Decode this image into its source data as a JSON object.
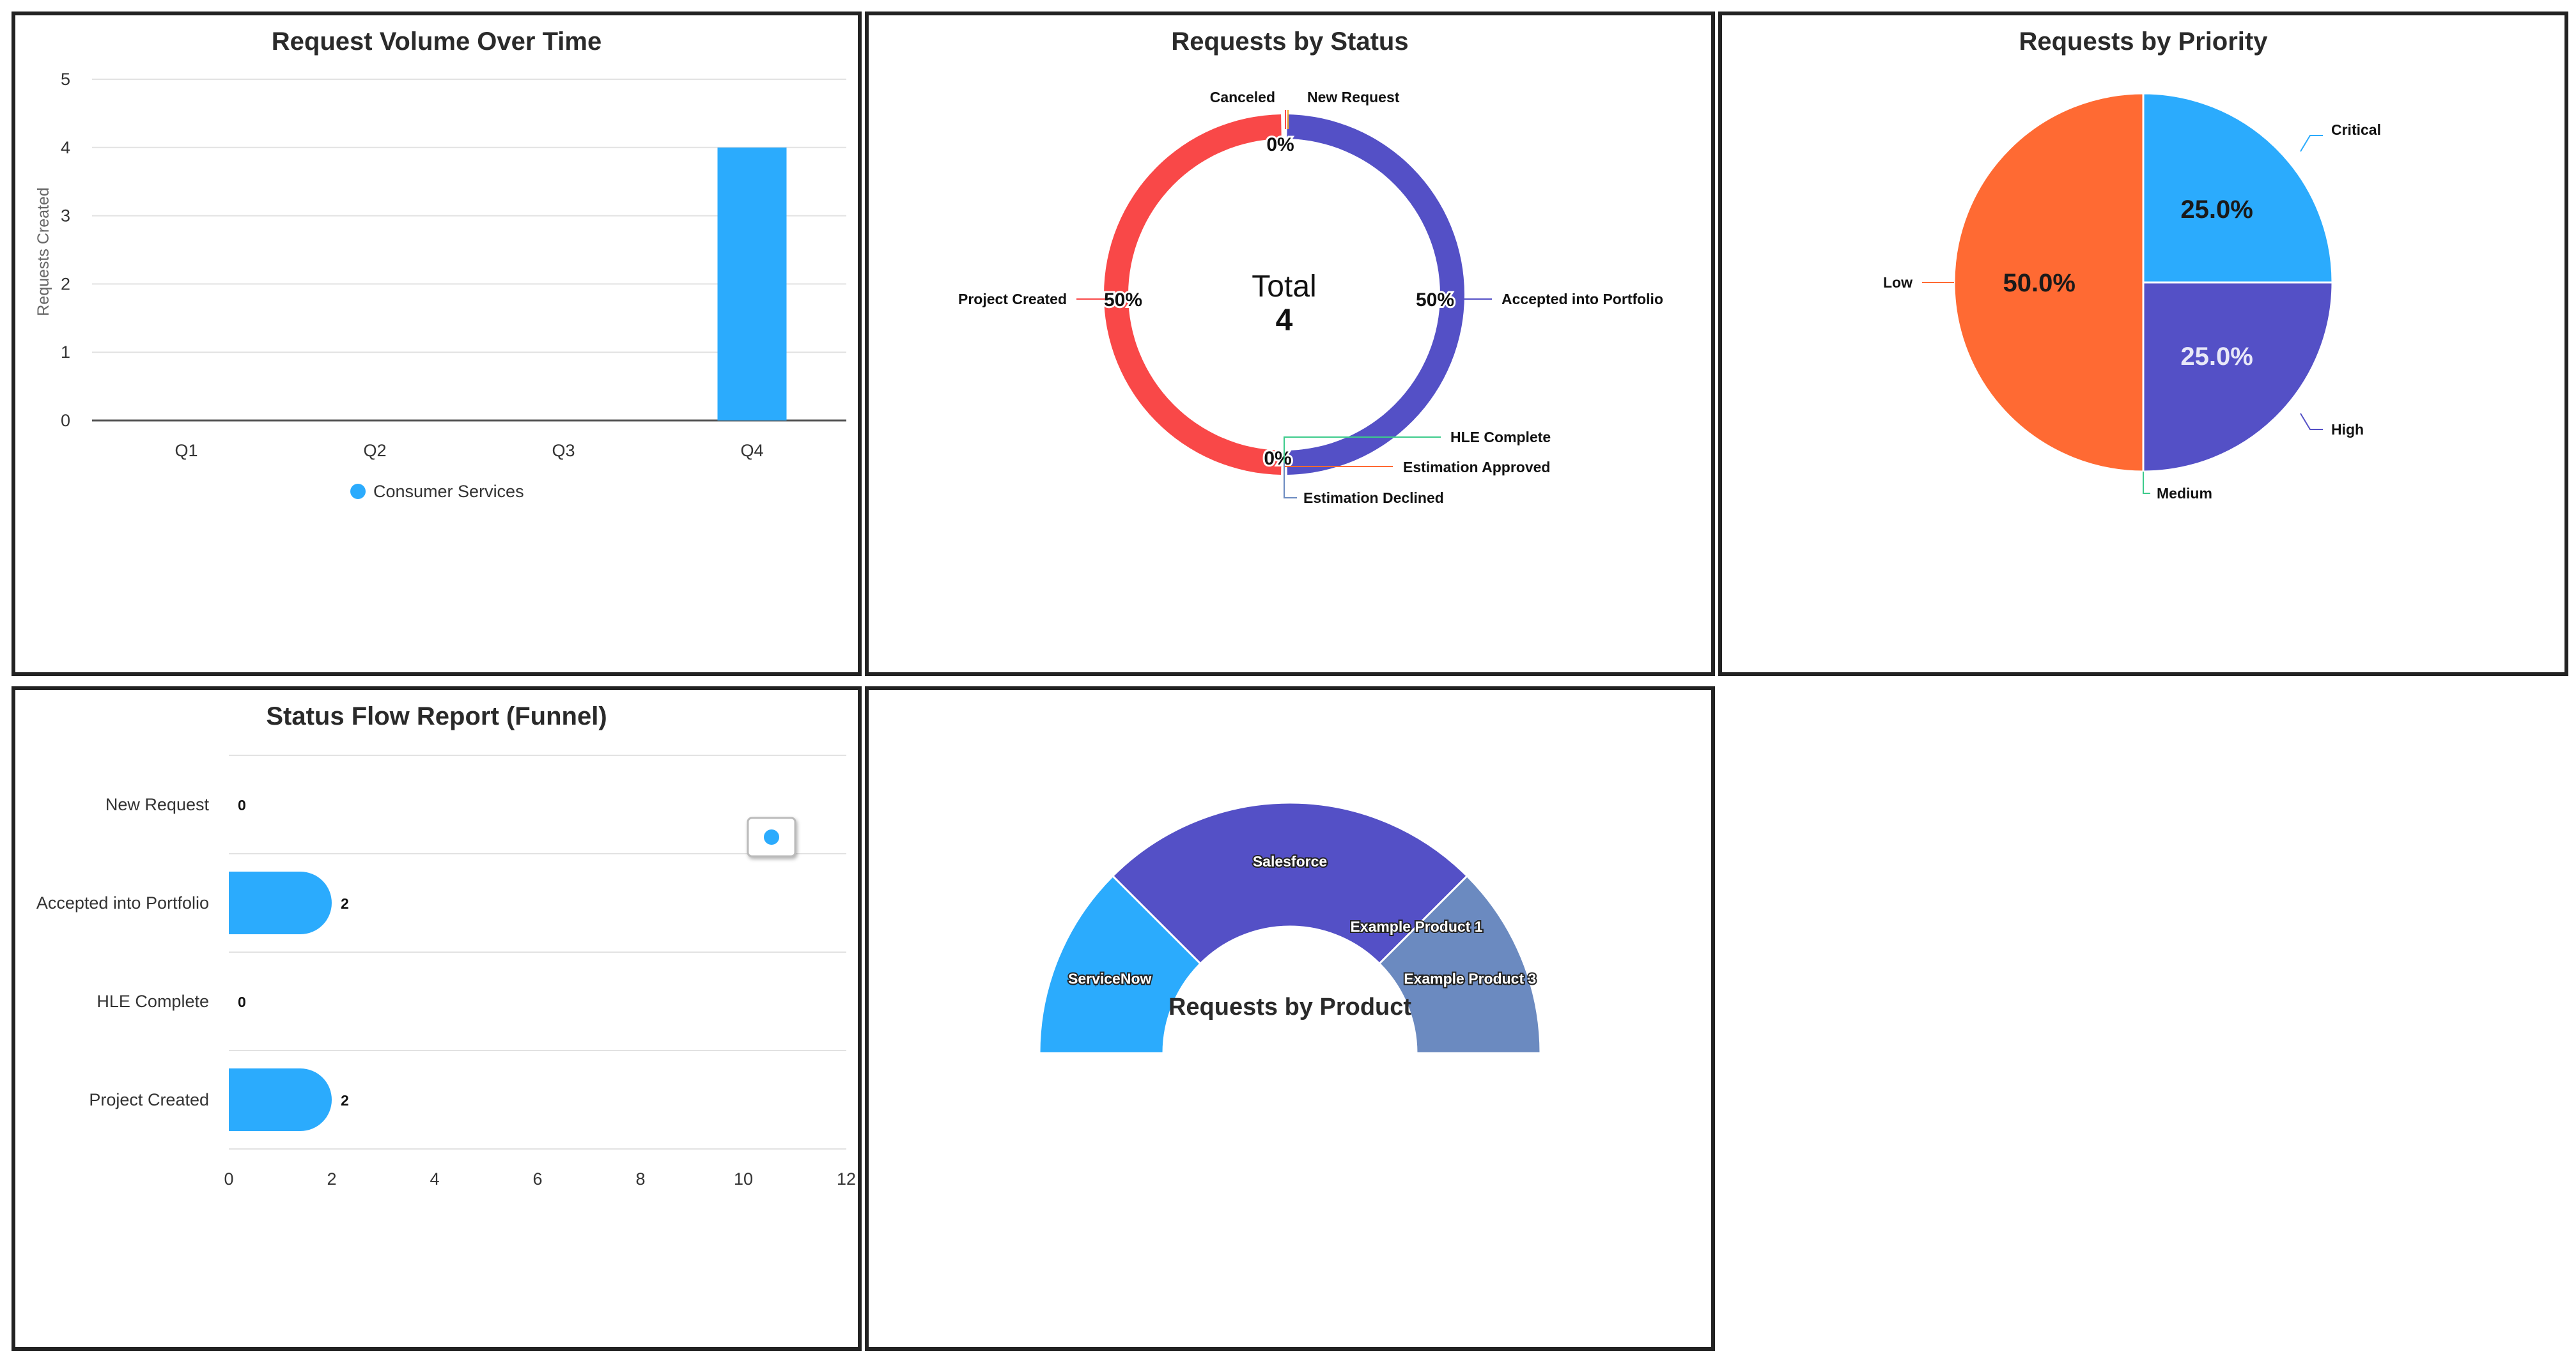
{
  "charts": {
    "volume": {
      "title": "Request Volume Over Time",
      "ylabel": "Requests Created",
      "legend_label": "Consumer Services"
    },
    "status": {
      "title": "Requests by Status",
      "center_label": "Total",
      "center_value": "4"
    },
    "priority": {
      "title": "Requests by Priority"
    },
    "funnel": {
      "title": "Status Flow Report (Funnel)"
    },
    "product": {
      "title": "Requests by Product"
    }
  },
  "colors": {
    "blue": "#2BABFD",
    "purple": "#5450C6",
    "red": "#F94848",
    "orange": "#FF6A33",
    "steel": "#6B8AC0",
    "green": "#3CCB8B"
  },
  "chart_data": [
    {
      "type": "bar",
      "title": "Request Volume Over Time",
      "ylabel": "Requests Created",
      "categories": [
        "Q1",
        "Q2",
        "Q3",
        "Q4"
      ],
      "series": [
        {
          "name": "Consumer Services",
          "values": [
            0,
            0,
            0,
            4
          ]
        }
      ],
      "ylim": [
        0,
        5
      ],
      "yticks": [
        "0",
        "1",
        "2",
        "3",
        "4",
        "5"
      ],
      "grid": true,
      "legend": "bottom"
    },
    {
      "type": "pie",
      "title": "Requests by Status",
      "donut": true,
      "slices": [
        {
          "label": "New Request",
          "value": 0,
          "pct": "0%",
          "color": "#F5A623"
        },
        {
          "label": "Accepted into Portfolio",
          "value": 2,
          "pct": "50%",
          "color": "#5450C6"
        },
        {
          "label": "HLE Complete",
          "value": 0,
          "pct": "0%",
          "color": "#3CCB8B"
        },
        {
          "label": "Estimation Approved",
          "value": 0,
          "pct": "",
          "color": "#FF6A33"
        },
        {
          "label": "Estimation Declined",
          "value": 0,
          "pct": "",
          "color": "#6B8AC0"
        },
        {
          "label": "Project Created",
          "value": 2,
          "pct": "50%",
          "color": "#F94848"
        },
        {
          "label": "Canceled",
          "value": 0,
          "pct": "0%",
          "color": "#F94848"
        }
      ],
      "total": 4
    },
    {
      "type": "pie",
      "title": "Requests by Priority",
      "slices": [
        {
          "label": "Critical",
          "value": 25.0,
          "pct": "25.0%",
          "color": "#2BABFD"
        },
        {
          "label": "High",
          "value": 25.0,
          "pct": "25.0%",
          "color": "#5450C6"
        },
        {
          "label": "Medium",
          "value": 0,
          "pct": "",
          "color": "#3CCB8B"
        },
        {
          "label": "Low",
          "value": 50.0,
          "pct": "50.0%",
          "color": "#FF6A33"
        }
      ]
    },
    {
      "type": "bar",
      "orientation": "horizontal",
      "title": "Status Flow Report (Funnel)",
      "categories": [
        "New Request",
        "Accepted into Portfolio",
        "HLE Complete",
        "Project Created"
      ],
      "values": [
        0,
        2,
        0,
        2
      ],
      "value_labels": [
        "0",
        "2",
        "0",
        "2"
      ],
      "xlim": [
        0,
        12
      ],
      "xticks": [
        "0",
        "2",
        "4",
        "6",
        "8",
        "10",
        "12"
      ],
      "grid": true,
      "legend": "top-right"
    },
    {
      "type": "pie",
      "title": "Requests by Product",
      "semi_donut": true,
      "slices": [
        {
          "label": "ServiceNow",
          "value": 1,
          "color": "#2BABFD"
        },
        {
          "label": "Salesforce",
          "value": 2,
          "color": "#5450C6"
        },
        {
          "label": "Example Product 1",
          "value": 0,
          "color": "#F94848"
        },
        {
          "label": "Example Product 3",
          "value": 1,
          "color": "#6B8AC0"
        }
      ]
    }
  ]
}
